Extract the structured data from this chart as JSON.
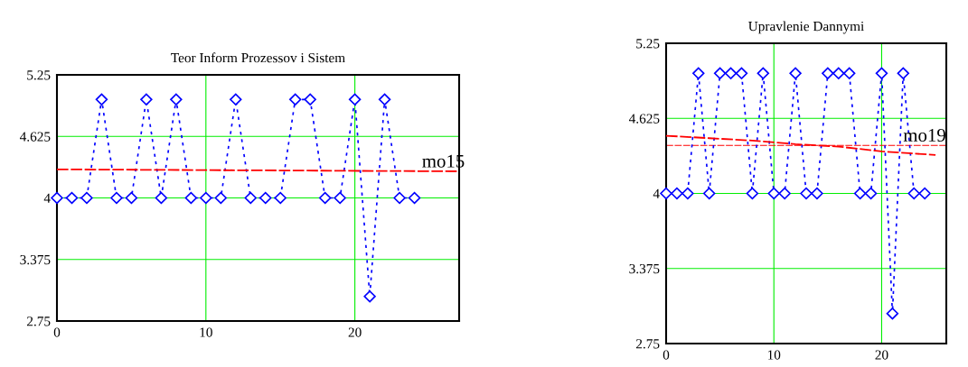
{
  "chart_data": [
    {
      "type": "line",
      "title": "Teor Inform Prozessov i Sistem",
      "xlim": [
        0,
        27
      ],
      "xticks": [
        0,
        10,
        20
      ],
      "ylim": [
        2.75,
        5.25
      ],
      "yticks": [
        2.75,
        3.375,
        4,
        4.625,
        5.25
      ],
      "grid": true,
      "legend": false,
      "series": [
        {
          "x": [
            0,
            1,
            2,
            3,
            4,
            5,
            6,
            7,
            8,
            9,
            10,
            11,
            12,
            13,
            14,
            15,
            16,
            17,
            18,
            19,
            20,
            21,
            22,
            23,
            24
          ],
          "values": [
            4,
            4,
            4,
            5,
            4,
            4,
            5,
            4,
            5,
            4,
            4,
            4,
            5,
            4,
            4,
            4,
            5,
            5,
            4,
            4,
            5,
            3,
            5,
            4,
            4
          ],
          "color": "#0000ff",
          "marker": "diamond",
          "line_style": "dotted"
        },
        {
          "x": [
            0,
            27
          ],
          "values": [
            4.29,
            4.27
          ],
          "color": "#ff0000",
          "marker": "none",
          "line_style": "dashed"
        }
      ],
      "annotations": [
        {
          "text": "mo15",
          "x": 24.5,
          "y": 4.27
        }
      ]
    },
    {
      "type": "line",
      "title": "Upravlenie Dannymi",
      "xlim": [
        0,
        26
      ],
      "xticks": [
        0,
        10,
        20
      ],
      "ylim": [
        2.75,
        5.25
      ],
      "yticks": [
        2.75,
        3.375,
        4,
        4.625,
        5.25
      ],
      "grid": true,
      "legend": false,
      "series": [
        {
          "x": [
            0,
            1,
            2,
            3,
            4,
            5,
            6,
            7,
            8,
            9,
            10,
            11,
            12,
            13,
            14,
            15,
            16,
            17,
            18,
            19,
            20,
            21,
            22,
            23,
            24
          ],
          "values": [
            4,
            4,
            4,
            5,
            4,
            5,
            5,
            5,
            4,
            5,
            4,
            4,
            5,
            4,
            4,
            5,
            5,
            5,
            4,
            4,
            5,
            3,
            5,
            4,
            4
          ],
          "color": "#0000ff",
          "marker": "diamond",
          "line_style": "dotted"
        },
        {
          "x": [
            0,
            4,
            8,
            12,
            16,
            20,
            25
          ],
          "values": [
            4.48,
            4.46,
            4.44,
            4.41,
            4.39,
            4.35,
            4.32
          ],
          "color": "#ff0000",
          "marker": "none",
          "line_style": "dashed"
        }
      ],
      "ref_lines": [
        {
          "axis": "y",
          "value": 4.4,
          "color": "#ff0000",
          "line_style": "dashed"
        }
      ],
      "annotations": [
        {
          "text": "mo19",
          "x": 22,
          "y": 4.4
        }
      ]
    }
  ]
}
